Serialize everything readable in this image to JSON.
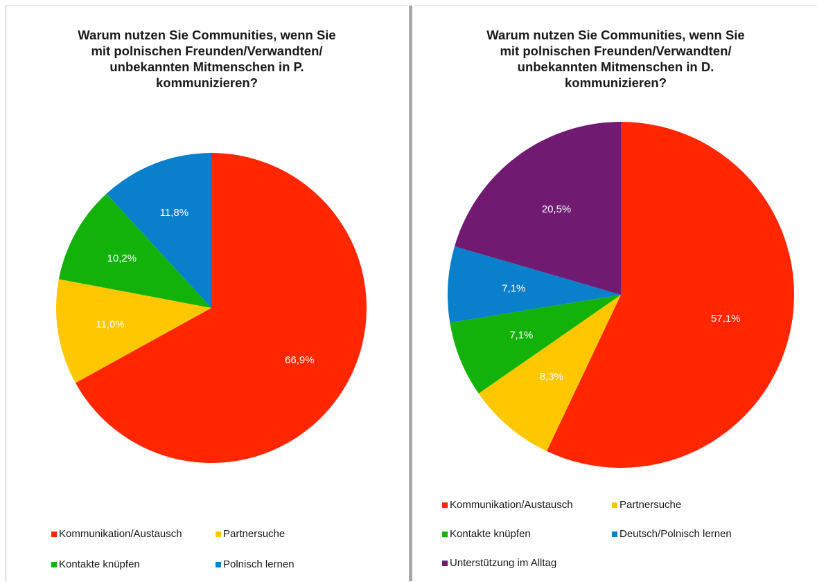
{
  "chart_data": [
    {
      "type": "pie",
      "title_lines": [
        "Warum nutzen Sie Communities, wenn Sie",
        "mit polnischen Freunden/Verwandten/",
        "unbekannten Mitmenschen in P.",
        "kommunizieren?"
      ],
      "slices": [
        {
          "label": "Kommunikation/Austausch",
          "value": 66.9,
          "value_label": "66,9%",
          "color": "#ff2600"
        },
        {
          "label": "Partnersuche",
          "value": 11.0,
          "value_label": "11,0%",
          "color": "#ffc700"
        },
        {
          "label": "Kontakte knüpfen",
          "value": 10.2,
          "value_label": "10,2%",
          "color": "#13b20b"
        },
        {
          "label": "Polnisch lernen",
          "value": 11.8,
          "value_label": "11,8%",
          "color": "#0a7fcc"
        }
      ],
      "start_angle": "12 o'clock",
      "direction": "clockwise",
      "legend_position": "bottom"
    },
    {
      "type": "pie",
      "title_lines": [
        "Warum nutzen Sie Communities, wenn Sie",
        "mit polnischen Freunden/Verwandten/",
        "unbekannten Mitmenschen in D.",
        "kommunizieren?"
      ],
      "slices": [
        {
          "label": "Kommunikation/Austausch",
          "value": 57.1,
          "value_label": "57,1%",
          "color": "#ff2600"
        },
        {
          "label": "Partnersuche",
          "value": 8.3,
          "value_label": "8,3%",
          "color": "#ffc700"
        },
        {
          "label": "Kontakte knüpfen",
          "value": 7.1,
          "value_label": "7,1%",
          "color": "#13b20b"
        },
        {
          "label": "Deutsch/Polnisch lernen",
          "value": 7.1,
          "value_label": "7,1%",
          "color": "#0a7fcc"
        },
        {
          "label": "Unterstützung im Alltag",
          "value": 20.5,
          "value_label": "20,5%",
          "color": "#701a72"
        }
      ],
      "start_angle": "12 o'clock",
      "direction": "clockwise",
      "legend_position": "bottom"
    }
  ]
}
